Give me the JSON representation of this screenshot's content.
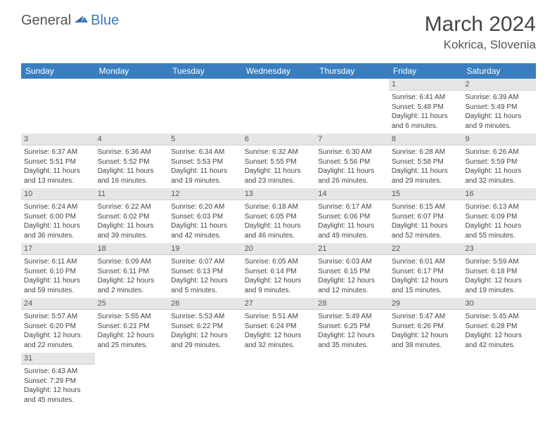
{
  "brand": {
    "general": "General",
    "blue": "Blue"
  },
  "title": "March 2024",
  "location": "Kokrica, Slovenia",
  "colors": {
    "header_bg": "#3a7ebf",
    "header_text": "#ffffff",
    "daynum_bg": "#e6e6e6",
    "row_divider": "#3a7ebf"
  },
  "dow": [
    "Sunday",
    "Monday",
    "Tuesday",
    "Wednesday",
    "Thursday",
    "Friday",
    "Saturday"
  ],
  "weeks": [
    [
      null,
      null,
      null,
      null,
      null,
      {
        "n": "1",
        "sr": "Sunrise: 6:41 AM",
        "ss": "Sunset: 5:48 PM",
        "dl1": "Daylight: 11 hours",
        "dl2": "and 6 minutes."
      },
      {
        "n": "2",
        "sr": "Sunrise: 6:39 AM",
        "ss": "Sunset: 5:49 PM",
        "dl1": "Daylight: 11 hours",
        "dl2": "and 9 minutes."
      }
    ],
    [
      {
        "n": "3",
        "sr": "Sunrise: 6:37 AM",
        "ss": "Sunset: 5:51 PM",
        "dl1": "Daylight: 11 hours",
        "dl2": "and 13 minutes."
      },
      {
        "n": "4",
        "sr": "Sunrise: 6:36 AM",
        "ss": "Sunset: 5:52 PM",
        "dl1": "Daylight: 11 hours",
        "dl2": "and 16 minutes."
      },
      {
        "n": "5",
        "sr": "Sunrise: 6:34 AM",
        "ss": "Sunset: 5:53 PM",
        "dl1": "Daylight: 11 hours",
        "dl2": "and 19 minutes."
      },
      {
        "n": "6",
        "sr": "Sunrise: 6:32 AM",
        "ss": "Sunset: 5:55 PM",
        "dl1": "Daylight: 11 hours",
        "dl2": "and 23 minutes."
      },
      {
        "n": "7",
        "sr": "Sunrise: 6:30 AM",
        "ss": "Sunset: 5:56 PM",
        "dl1": "Daylight: 11 hours",
        "dl2": "and 26 minutes."
      },
      {
        "n": "8",
        "sr": "Sunrise: 6:28 AM",
        "ss": "Sunset: 5:58 PM",
        "dl1": "Daylight: 11 hours",
        "dl2": "and 29 minutes."
      },
      {
        "n": "9",
        "sr": "Sunrise: 6:26 AM",
        "ss": "Sunset: 5:59 PM",
        "dl1": "Daylight: 11 hours",
        "dl2": "and 32 minutes."
      }
    ],
    [
      {
        "n": "10",
        "sr": "Sunrise: 6:24 AM",
        "ss": "Sunset: 6:00 PM",
        "dl1": "Daylight: 11 hours",
        "dl2": "and 36 minutes."
      },
      {
        "n": "11",
        "sr": "Sunrise: 6:22 AM",
        "ss": "Sunset: 6:02 PM",
        "dl1": "Daylight: 11 hours",
        "dl2": "and 39 minutes."
      },
      {
        "n": "12",
        "sr": "Sunrise: 6:20 AM",
        "ss": "Sunset: 6:03 PM",
        "dl1": "Daylight: 11 hours",
        "dl2": "and 42 minutes."
      },
      {
        "n": "13",
        "sr": "Sunrise: 6:18 AM",
        "ss": "Sunset: 6:05 PM",
        "dl1": "Daylight: 11 hours",
        "dl2": "and 46 minutes."
      },
      {
        "n": "14",
        "sr": "Sunrise: 6:17 AM",
        "ss": "Sunset: 6:06 PM",
        "dl1": "Daylight: 11 hours",
        "dl2": "and 49 minutes."
      },
      {
        "n": "15",
        "sr": "Sunrise: 6:15 AM",
        "ss": "Sunset: 6:07 PM",
        "dl1": "Daylight: 11 hours",
        "dl2": "and 52 minutes."
      },
      {
        "n": "16",
        "sr": "Sunrise: 6:13 AM",
        "ss": "Sunset: 6:09 PM",
        "dl1": "Daylight: 11 hours",
        "dl2": "and 55 minutes."
      }
    ],
    [
      {
        "n": "17",
        "sr": "Sunrise: 6:11 AM",
        "ss": "Sunset: 6:10 PM",
        "dl1": "Daylight: 11 hours",
        "dl2": "and 59 minutes."
      },
      {
        "n": "18",
        "sr": "Sunrise: 6:09 AM",
        "ss": "Sunset: 6:11 PM",
        "dl1": "Daylight: 12 hours",
        "dl2": "and 2 minutes."
      },
      {
        "n": "19",
        "sr": "Sunrise: 6:07 AM",
        "ss": "Sunset: 6:13 PM",
        "dl1": "Daylight: 12 hours",
        "dl2": "and 5 minutes."
      },
      {
        "n": "20",
        "sr": "Sunrise: 6:05 AM",
        "ss": "Sunset: 6:14 PM",
        "dl1": "Daylight: 12 hours",
        "dl2": "and 9 minutes."
      },
      {
        "n": "21",
        "sr": "Sunrise: 6:03 AM",
        "ss": "Sunset: 6:15 PM",
        "dl1": "Daylight: 12 hours",
        "dl2": "and 12 minutes."
      },
      {
        "n": "22",
        "sr": "Sunrise: 6:01 AM",
        "ss": "Sunset: 6:17 PM",
        "dl1": "Daylight: 12 hours",
        "dl2": "and 15 minutes."
      },
      {
        "n": "23",
        "sr": "Sunrise: 5:59 AM",
        "ss": "Sunset: 6:18 PM",
        "dl1": "Daylight: 12 hours",
        "dl2": "and 19 minutes."
      }
    ],
    [
      {
        "n": "24",
        "sr": "Sunrise: 5:57 AM",
        "ss": "Sunset: 6:20 PM",
        "dl1": "Daylight: 12 hours",
        "dl2": "and 22 minutes."
      },
      {
        "n": "25",
        "sr": "Sunrise: 5:55 AM",
        "ss": "Sunset: 6:21 PM",
        "dl1": "Daylight: 12 hours",
        "dl2": "and 25 minutes."
      },
      {
        "n": "26",
        "sr": "Sunrise: 5:53 AM",
        "ss": "Sunset: 6:22 PM",
        "dl1": "Daylight: 12 hours",
        "dl2": "and 29 minutes."
      },
      {
        "n": "27",
        "sr": "Sunrise: 5:51 AM",
        "ss": "Sunset: 6:24 PM",
        "dl1": "Daylight: 12 hours",
        "dl2": "and 32 minutes."
      },
      {
        "n": "28",
        "sr": "Sunrise: 5:49 AM",
        "ss": "Sunset: 6:25 PM",
        "dl1": "Daylight: 12 hours",
        "dl2": "and 35 minutes."
      },
      {
        "n": "29",
        "sr": "Sunrise: 5:47 AM",
        "ss": "Sunset: 6:26 PM",
        "dl1": "Daylight: 12 hours",
        "dl2": "and 38 minutes."
      },
      {
        "n": "30",
        "sr": "Sunrise: 5:45 AM",
        "ss": "Sunset: 6:28 PM",
        "dl1": "Daylight: 12 hours",
        "dl2": "and 42 minutes."
      }
    ],
    [
      {
        "n": "31",
        "sr": "Sunrise: 6:43 AM",
        "ss": "Sunset: 7:29 PM",
        "dl1": "Daylight: 12 hours",
        "dl2": "and 45 minutes."
      },
      null,
      null,
      null,
      null,
      null,
      null
    ]
  ]
}
